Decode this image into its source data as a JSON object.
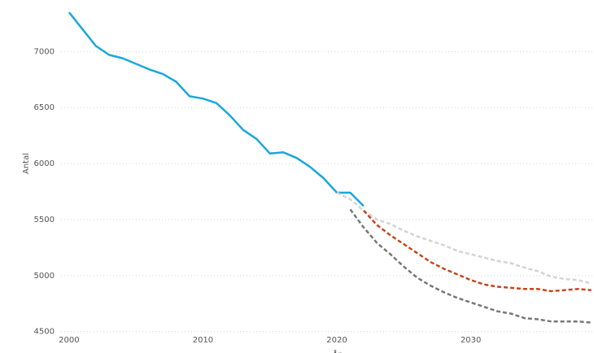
{
  "chart_data": {
    "type": "line",
    "y_label": "Antal",
    "x_label": "År",
    "x": [
      2000,
      2001,
      2002,
      2003,
      2004,
      2005,
      2006,
      2007,
      2008,
      2009,
      2010,
      2011,
      2012,
      2013,
      2014,
      2015,
      2016,
      2017,
      2018,
      2019,
      2020,
      2021,
      2022,
      2023,
      2024,
      2025,
      2026,
      2027,
      2028,
      2029,
      2030,
      2031,
      2032,
      2033,
      2034,
      2035,
      2036,
      2037,
      2038,
      2039
    ],
    "series": [
      {
        "color": "#1aa7dc",
        "dashed": false,
        "values": [
          7350,
          7200,
          7050,
          6970,
          6940,
          6890,
          6840,
          6800,
          6730,
          6600,
          6580,
          6540,
          6430,
          6300,
          6220,
          6090,
          6100,
          6050,
          5970,
          5870,
          5740,
          5740,
          5620,
          null,
          null,
          null,
          null,
          null,
          null,
          null,
          null,
          null,
          null,
          null,
          null,
          null,
          null,
          null,
          null,
          null
        ]
      },
      {
        "color": "#d4d4d4",
        "dashed": true,
        "values": [
          null,
          null,
          null,
          null,
          null,
          null,
          null,
          null,
          null,
          null,
          null,
          null,
          null,
          null,
          null,
          null,
          null,
          null,
          null,
          null,
          5740,
          5680,
          5580,
          5500,
          5460,
          5400,
          5350,
          5310,
          5270,
          5220,
          5190,
          5160,
          5130,
          5110,
          5070,
          5040,
          4990,
          4970,
          4960,
          4930
        ]
      },
      {
        "color": "#c8451c",
        "dashed": true,
        "values": [
          null,
          null,
          null,
          null,
          null,
          null,
          null,
          null,
          null,
          null,
          null,
          null,
          null,
          null,
          null,
          null,
          null,
          null,
          null,
          null,
          null,
          null,
          5580,
          5450,
          5360,
          5280,
          5200,
          5120,
          5060,
          5010,
          4960,
          4920,
          4900,
          4890,
          4880,
          4880,
          4860,
          4870,
          4880,
          4870
        ]
      },
      {
        "color": "#777777",
        "dashed": true,
        "values": [
          null,
          null,
          null,
          null,
          null,
          null,
          null,
          null,
          null,
          null,
          null,
          null,
          null,
          null,
          null,
          null,
          null,
          null,
          null,
          null,
          null,
          5590,
          5430,
          5290,
          5190,
          5080,
          4980,
          4910,
          4850,
          4800,
          4760,
          4720,
          4680,
          4660,
          4620,
          4610,
          4590,
          4590,
          4590,
          4580
        ]
      }
    ],
    "xlim": [
      1999.4,
      2039.2
    ],
    "xticks": [
      2000,
      2010,
      2020,
      2030
    ],
    "ylim": [
      4490,
      7460
    ],
    "yticks": [
      4500,
      5000,
      5500,
      6000,
      6500,
      7000
    ],
    "grid": true
  }
}
